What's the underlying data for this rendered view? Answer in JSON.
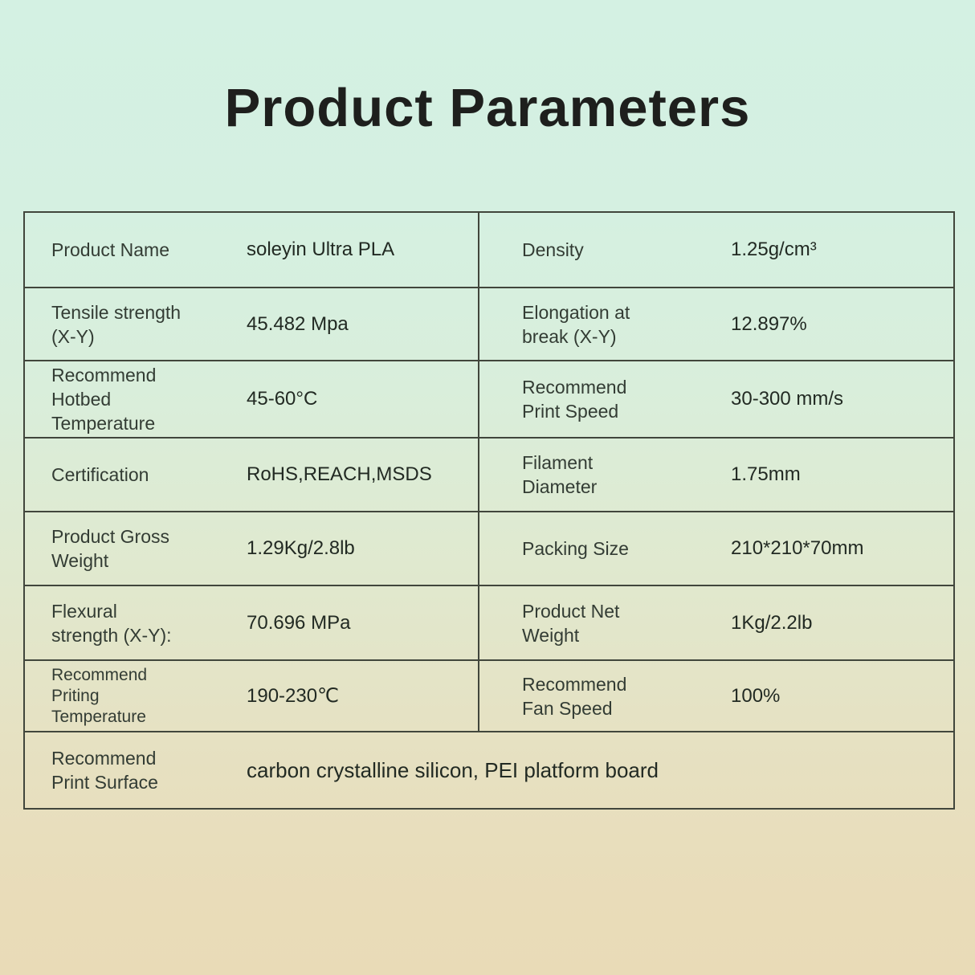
{
  "page": {
    "title": "Product Parameters"
  },
  "table": {
    "rows": [
      {
        "left": {
          "label": "Product Name",
          "value": "soleyin Ultra PLA"
        },
        "right": {
          "label": "Density",
          "value": "1.25g/cm³"
        }
      },
      {
        "left": {
          "label": "Tensile strength (X-Y)",
          "value": "45.482 Mpa"
        },
        "right": {
          "label": "Elongation at break (X-Y)",
          "value": "12.897%"
        }
      },
      {
        "left": {
          "label": "Recommend Hotbed Temperature",
          "value": "45-60°C"
        },
        "right": {
          "label": "Recommend Print Speed",
          "value": "30-300 mm/s"
        }
      },
      {
        "left": {
          "label": "Certification",
          "value": "RoHS,REACH,MSDS"
        },
        "right": {
          "label": "Filament Diameter",
          "value": "1.75mm"
        }
      },
      {
        "left": {
          "label": "Product Gross Weight",
          "value": "1.29Kg/2.8lb"
        },
        "right": {
          "label": "Packing Size",
          "value": "210*210*70mm"
        }
      },
      {
        "left": {
          "label": "Flexural strength (X-Y):",
          "value": "70.696 MPa"
        },
        "right": {
          "label": "Product Net Weight",
          "value": "1Kg/2.2lb"
        }
      },
      {
        "left": {
          "label": "Recommend Priting Temperature",
          "value": "190-230℃"
        },
        "right": {
          "label": "Recommend Fan Speed",
          "value": "100%"
        }
      },
      {
        "full": {
          "label": "Recommend Print Surface",
          "value": "carbon crystalline silicon, PEI platform board"
        }
      }
    ]
  }
}
